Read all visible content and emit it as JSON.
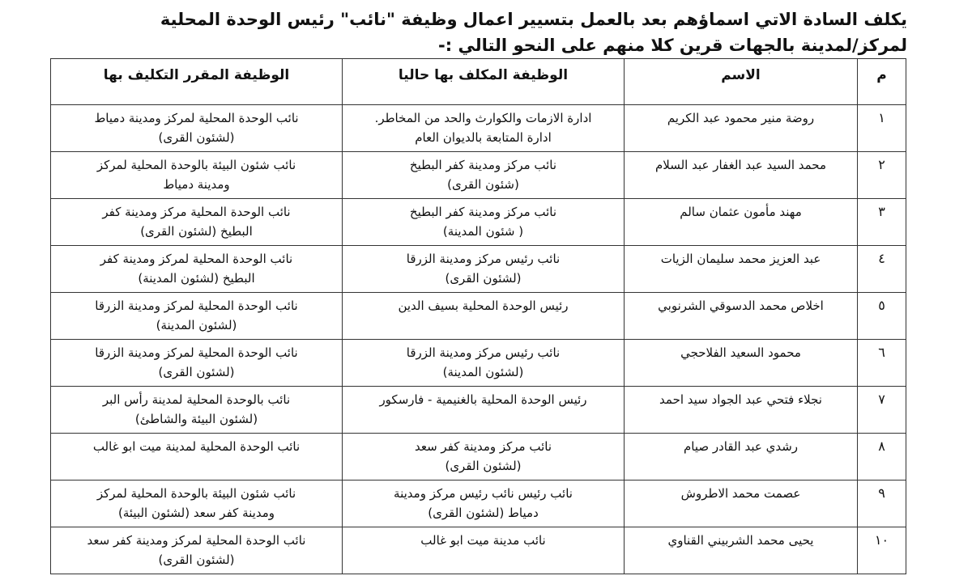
{
  "intro": {
    "line1": "يكلف السادة الاتي اسماؤهم بعد بالعمل بتسيير اعمال وظيفة \"نائب\" رئيس الوحدة المحلية",
    "line2": "لمركز/لمدينة بالجهات قرين كلا منهم على النحو التالي :-"
  },
  "table": {
    "headers": [
      "م",
      "الاسم",
      "الوظيفة المكلف بها حاليا",
      "الوظيفة المقرر التكليف بها"
    ],
    "rows": [
      {
        "num": "١",
        "name": "روضة منير محمود عبد الكريم",
        "current": [
          "ادارة الازمات والكوارث والحد من المخاطر.",
          "ادارة المتابعة بالديوان العام"
        ],
        "assigned": [
          "نائب الوحدة المحلية لمركز ومدينة دمياط",
          "(لشئون القرى)"
        ]
      },
      {
        "num": "٢",
        "name": "محمد السيد عبد الغفار عبد السلام",
        "current": [
          "نائب مركز ومدينة كفر البطيخ",
          "(شئون القرى)"
        ],
        "assigned": [
          "نائب شئون البيئة بالوحدة المحلية لمركز",
          "ومدينة دمياط"
        ]
      },
      {
        "num": "٣",
        "name": "مهند مأمون عثمان سالم",
        "current": [
          "نائب مركز ومدينة كفر البطيخ",
          "( شئون المدينة)"
        ],
        "assigned": [
          "نائب الوحدة المحلية مركز ومدينة كفر",
          "البطيخ (لشئون القرى)"
        ]
      },
      {
        "num": "٤",
        "name": "عبد العزيز محمد سليمان الزيات",
        "current": [
          "نائب رئيس مركز ومدينة الزرقا",
          "(لشئون القرى)"
        ],
        "assigned": [
          "نائب الوحدة المحلية لمركز ومدينة كفر",
          "البطيخ (لشئون المدينة)"
        ]
      },
      {
        "num": "٥",
        "name": "اخلاص محمد الدسوقي الشرنوبي",
        "current": [
          "رئيس الوحدة المحلية بسيف الدين"
        ],
        "assigned": [
          "نائب الوحدة المحلية لمركز ومدينة الزرقا",
          "(لشئون المدينة)"
        ]
      },
      {
        "num": "٦",
        "name": "محمود السعيد الفلاحجي",
        "current": [
          "نائب رئيس مركز ومدينة الزرقا",
          "(لشئون المدينة)"
        ],
        "assigned": [
          "نائب الوحدة المحلية لمركز ومدينة الزرقا",
          "(لشئون القرى)"
        ]
      },
      {
        "num": "٧",
        "name": "نجلاء فتحي عبد الجواد سيد احمد",
        "current": [
          "رئيس الوحدة المحلية بالغنيمية - فارسكور"
        ],
        "assigned": [
          "نائب بالوحدة المحلية لمدينة رأس البر",
          "(لشئون البيئة والشاطئ)"
        ]
      },
      {
        "num": "٨",
        "name": "رشدي عبد القادر صيام",
        "current": [
          "نائب مركز ومدينة كفر سعد",
          "(لشئون القرى)"
        ],
        "assigned": [
          "نائب الوحدة المحلية لمدينة ميت ابو غالب"
        ]
      },
      {
        "num": "٩",
        "name": "عصمت محمد الاطروش",
        "current": [
          "نائب رئيس نائب رئيس مركز ومدينة",
          "دمياط (لشئون القرى)"
        ],
        "assigned": [
          "نائب شئون البيئة بالوحدة المحلية لمركز",
          "ومدينة كفر سعد (لشئون البيئة)"
        ]
      },
      {
        "num": "١٠",
        "name": "يحيى محمد الشربيني القناوي",
        "current": [
          "نائب مدينة ميت ابو غالب"
        ],
        "assigned": [
          "نائب الوحدة المحلية لمركز ومدينة كفر سعد",
          "(لشئون القرى)"
        ]
      }
    ]
  }
}
